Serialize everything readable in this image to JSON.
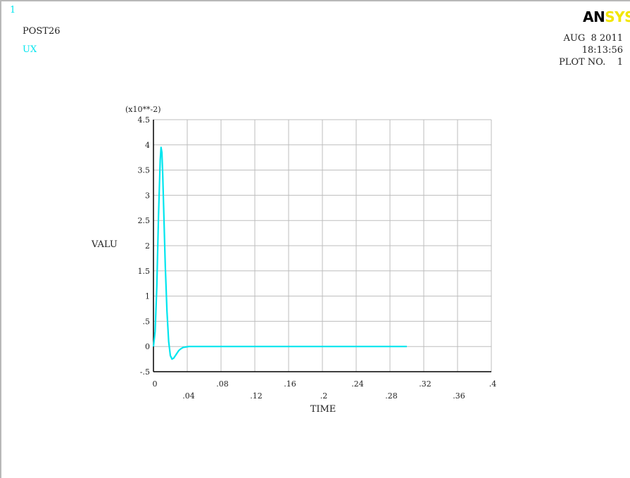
{
  "header": {
    "window_number": "1",
    "module": "POST26",
    "variable_label": "UX",
    "logo_part1": "AN",
    "logo_part2": "SYS",
    "date": "AUG  8 2011",
    "time": "18:13:56",
    "plot_no": "PLOT NO.    1"
  },
  "colors": {
    "curve": "#00e5ee",
    "logo_dark": "#000000",
    "logo_yellow": "#f2e600",
    "grid": "#bdbdbd",
    "axis": "#000000"
  },
  "chart_data": {
    "type": "line",
    "title": "",
    "xlabel": "TIME",
    "ylabel": "VALU",
    "y_multiplier_label": "(x10**-2)",
    "xlim": [
      0,
      0.4
    ],
    "ylim": [
      -0.5,
      4.5
    ],
    "grid": true,
    "x_ticks": [
      "0",
      ".04",
      ".08",
      ".12",
      ".16",
      ".2",
      ".24",
      ".28",
      ".32",
      ".36",
      ".4"
    ],
    "y_ticks": [
      "-.5",
      "0",
      ".5",
      "1",
      "1.5",
      "2",
      "2.5",
      "3",
      "3.5",
      "4",
      "4.5"
    ],
    "series": [
      {
        "x": [
          0,
          0.002,
          0.004,
          0.006,
          0.008,
          0.009,
          0.01,
          0.011,
          0.012,
          0.014,
          0.016,
          0.018,
          0.02,
          0.022,
          0.024,
          0.026,
          0.028,
          0.03,
          0.032,
          0.035,
          0.038,
          0.042,
          0.046,
          0.05,
          0.06,
          0.08,
          0.12,
          0.2,
          0.28,
          0.3
        ],
        "y": [
          0,
          0.3,
          1.2,
          2.6,
          3.7,
          3.95,
          3.85,
          3.4,
          2.8,
          1.6,
          0.7,
          0.1,
          -0.18,
          -0.25,
          -0.23,
          -0.18,
          -0.13,
          -0.08,
          -0.05,
          -0.02,
          -0.01,
          0.0,
          0.0,
          0.0,
          0.0,
          0.0,
          0.0,
          0.0,
          0.0,
          0.0
        ]
      }
    ]
  }
}
